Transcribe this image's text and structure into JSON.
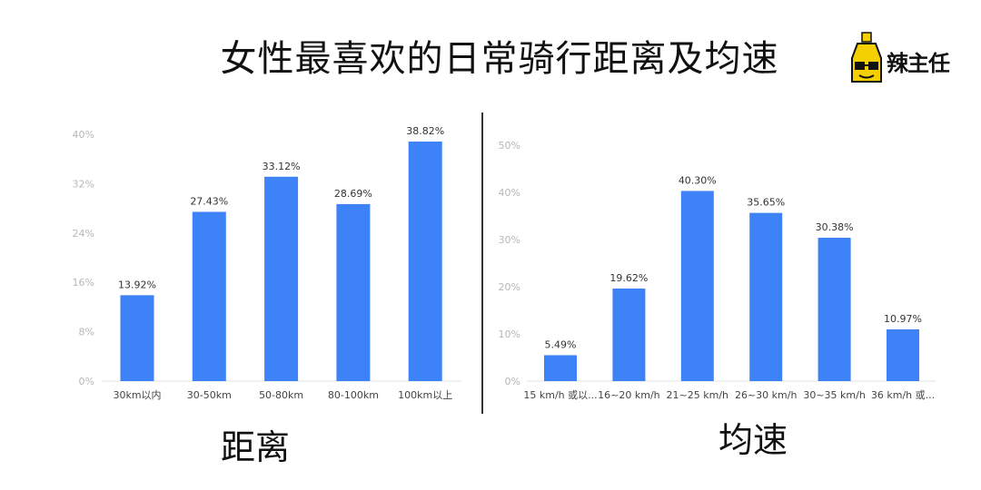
{
  "title": "女性最喜欢的日常骑行距离及均速",
  "logo": {
    "text": "辣主任"
  },
  "colors": {
    "bar": "#3e82f7",
    "axis": "#e0e0e0",
    "tick": "#b7b7b7"
  },
  "chart_data": [
    {
      "type": "bar",
      "title": "距离",
      "categories": [
        "30km以内",
        "30-50km",
        "50-80km",
        "80-100km",
        "100km以上"
      ],
      "values": [
        13.92,
        27.43,
        33.12,
        28.69,
        38.82
      ],
      "value_labels": [
        "13.92%",
        "27.43%",
        "33.12%",
        "28.69%",
        "38.82%"
      ],
      "yticks": [
        "0%",
        "8%",
        "16%",
        "24%",
        "32%",
        "40%"
      ],
      "ylim": [
        0,
        40
      ],
      "grid": false
    },
    {
      "type": "bar",
      "title": "均速",
      "categories": [
        "15 km/h 或以...",
        "16~20 km/h",
        "21~25 km/h",
        "26~30 km/h",
        "30~35 km/h",
        "36  km/h 或..."
      ],
      "values": [
        5.49,
        19.62,
        40.3,
        35.65,
        30.38,
        10.97
      ],
      "value_labels": [
        "5.49%",
        "19.62%",
        "40.30%",
        "35.65%",
        "30.38%",
        "10.97%"
      ],
      "yticks": [
        "0%",
        "10%",
        "20%",
        "30%",
        "40%",
        "50%"
      ],
      "ylim": [
        0,
        50
      ],
      "grid": false
    }
  ]
}
